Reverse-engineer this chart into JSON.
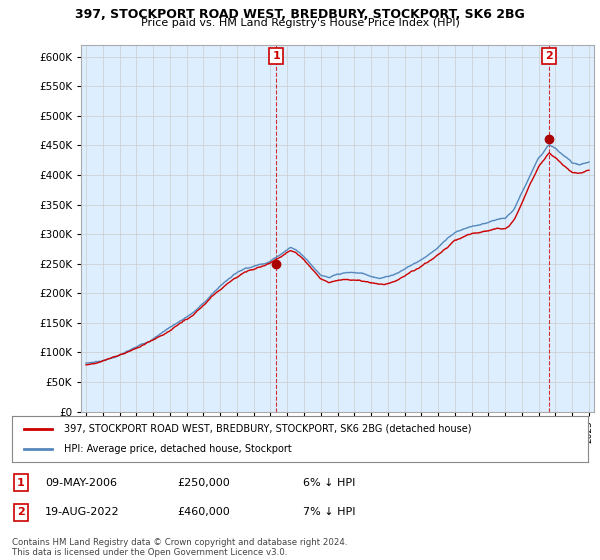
{
  "title1": "397, STOCKPORT ROAD WEST, BREDBURY, STOCKPORT, SK6 2BG",
  "title2": "Price paid vs. HM Land Registry's House Price Index (HPI)",
  "ylabel_vals": [
    0,
    50000,
    100000,
    150000,
    200000,
    250000,
    300000,
    350000,
    400000,
    450000,
    500000,
    550000,
    600000
  ],
  "ylim": [
    0,
    620000
  ],
  "xlim_start": 1994.7,
  "xlim_end": 2025.3,
  "transaction1": {
    "date": "09-MAY-2006",
    "price": 250000,
    "pct": "6%",
    "dir": "↓",
    "label": "1"
  },
  "transaction2": {
    "date": "19-AUG-2022",
    "price": 460000,
    "pct": "7%",
    "dir": "↓",
    "label": "2"
  },
  "transaction1_x": 2006.36,
  "transaction2_x": 2022.63,
  "legend_line1": "397, STOCKPORT ROAD WEST, BREDBURY, STOCKPORT, SK6 2BG (detached house)",
  "legend_line2": "HPI: Average price, detached house, Stockport",
  "footer": "Contains HM Land Registry data © Crown copyright and database right 2024.\nThis data is licensed under the Open Government Licence v3.0.",
  "line_color_red": "#cc0000",
  "line_color_blue": "#5588bb",
  "fill_color_blue": "#ddeeff",
  "marker_color_red": "#aa0000",
  "grid_color": "#cccccc",
  "background_color": "#ffffff",
  "label_box_color": "#cc0000"
}
